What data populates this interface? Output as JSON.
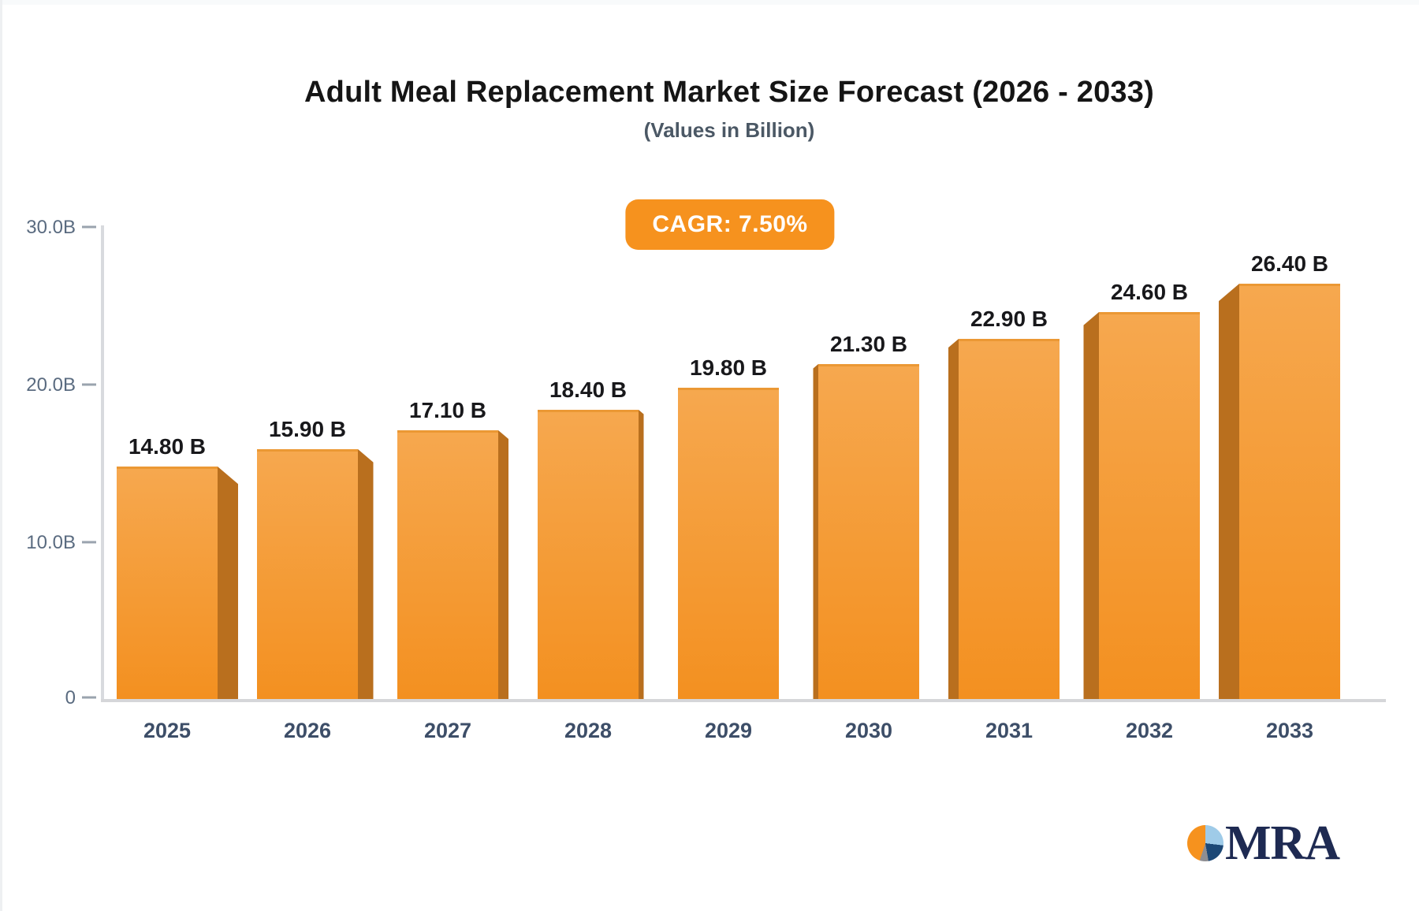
{
  "title": "Adult Meal Replacement Market Size Forecast (2026 - 2033)",
  "subtitle": "(Values in Billion)",
  "badge": {
    "label": "CAGR: 7.50%"
  },
  "chart_data": {
    "type": "bar",
    "title": "Adult Meal Replacement Market Size Forecast (2026 - 2033)",
    "subtitle": "(Values in Billion)",
    "cagr": "7.50%",
    "categories": [
      "2025",
      "2026",
      "2027",
      "2028",
      "2029",
      "2030",
      "2031",
      "2032",
      "2033"
    ],
    "values": [
      14.8,
      15.9,
      17.1,
      18.4,
      19.8,
      21.3,
      22.9,
      24.6,
      26.4
    ],
    "value_labels": [
      "14.80 B",
      "15.90 B",
      "17.10 B",
      "18.40 B",
      "19.80 B",
      "21.30 B",
      "22.90 B",
      "24.60 B",
      "26.40 B"
    ],
    "unit": "Billion",
    "xlabel": "",
    "ylabel": "",
    "ylim": [
      0,
      30
    ],
    "yticks": [
      {
        "label": "30.0B",
        "value": 30
      },
      {
        "label": "20.0B",
        "value": 20
      },
      {
        "label": "10.0B",
        "value": 10
      },
      {
        "label": "0",
        "value": 0
      }
    ],
    "grid": false,
    "legend": "none",
    "style": "3d-perspective-bars"
  },
  "colors": {
    "badge_bg": "#F6921E",
    "bar_top": "#F6A84F",
    "bar_bottom": "#F39020",
    "bar_top_edge": "#E8932D",
    "bar_side": "#B96F1E",
    "axis_line": "#D8DADE",
    "baseline": "#D5D6D9",
    "tick": "#9AA3AE",
    "y_label": "#5A6B80",
    "x_label": "#3D4E68",
    "value_label": "#18181B",
    "title": "#151515",
    "subtitle": "#4B5865",
    "logo_text": "#1E2A52",
    "pie_orange": "#F6921E",
    "pie_blue": "#9FCBE8",
    "pie_navy": "#1C4876",
    "pie_gray": "#8E8E92"
  },
  "logo": {
    "text": "MRA"
  }
}
